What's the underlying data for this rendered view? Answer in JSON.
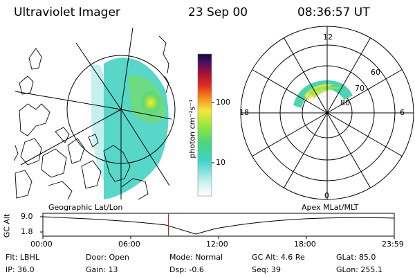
{
  "header": {
    "instrument": "Ultraviolet Imager",
    "date": "23 Sep 00",
    "time": "08:36:57 UT"
  },
  "colorbar": {
    "unit_label": "photon cm⁻²s⁻¹",
    "ticks": [
      "100",
      "10"
    ]
  },
  "polar_plot": {
    "mlt_labels": [
      "12",
      "18",
      "6",
      "0"
    ],
    "lat_labels": [
      "60",
      "70",
      "80"
    ]
  },
  "panel_labels": {
    "left": "Geographic Lat/Lon",
    "right": "Apex MLat/MLT"
  },
  "altitude_plot": {
    "ylabel": "GC Alt",
    "yticks": [
      "9.0",
      "1.8"
    ],
    "xticks": [
      "00:00",
      "06:00",
      "12:00",
      "18:00",
      "23:59"
    ],
    "marker_time": "08:37",
    "accent": "#cc2222"
  },
  "footer": {
    "row1": [
      {
        "key": "Flt:",
        "val": "LBHL"
      },
      {
        "key": "Door:",
        "val": "Open"
      },
      {
        "key": "Mode:",
        "val": "Normal"
      },
      {
        "key": "GC Alt:",
        "val": "4.6 Re"
      },
      {
        "key": "GLat:",
        "val": "85.0"
      }
    ],
    "row2": [
      {
        "key": "IP:",
        "val": "36.0"
      },
      {
        "key": "Gain:",
        "val": "13"
      },
      {
        "key": "Dsp:",
        "val": "-0.6"
      },
      {
        "key": "Seq:",
        "val": "39"
      },
      {
        "key": "GLon:",
        "val": "255.1"
      }
    ]
  }
}
